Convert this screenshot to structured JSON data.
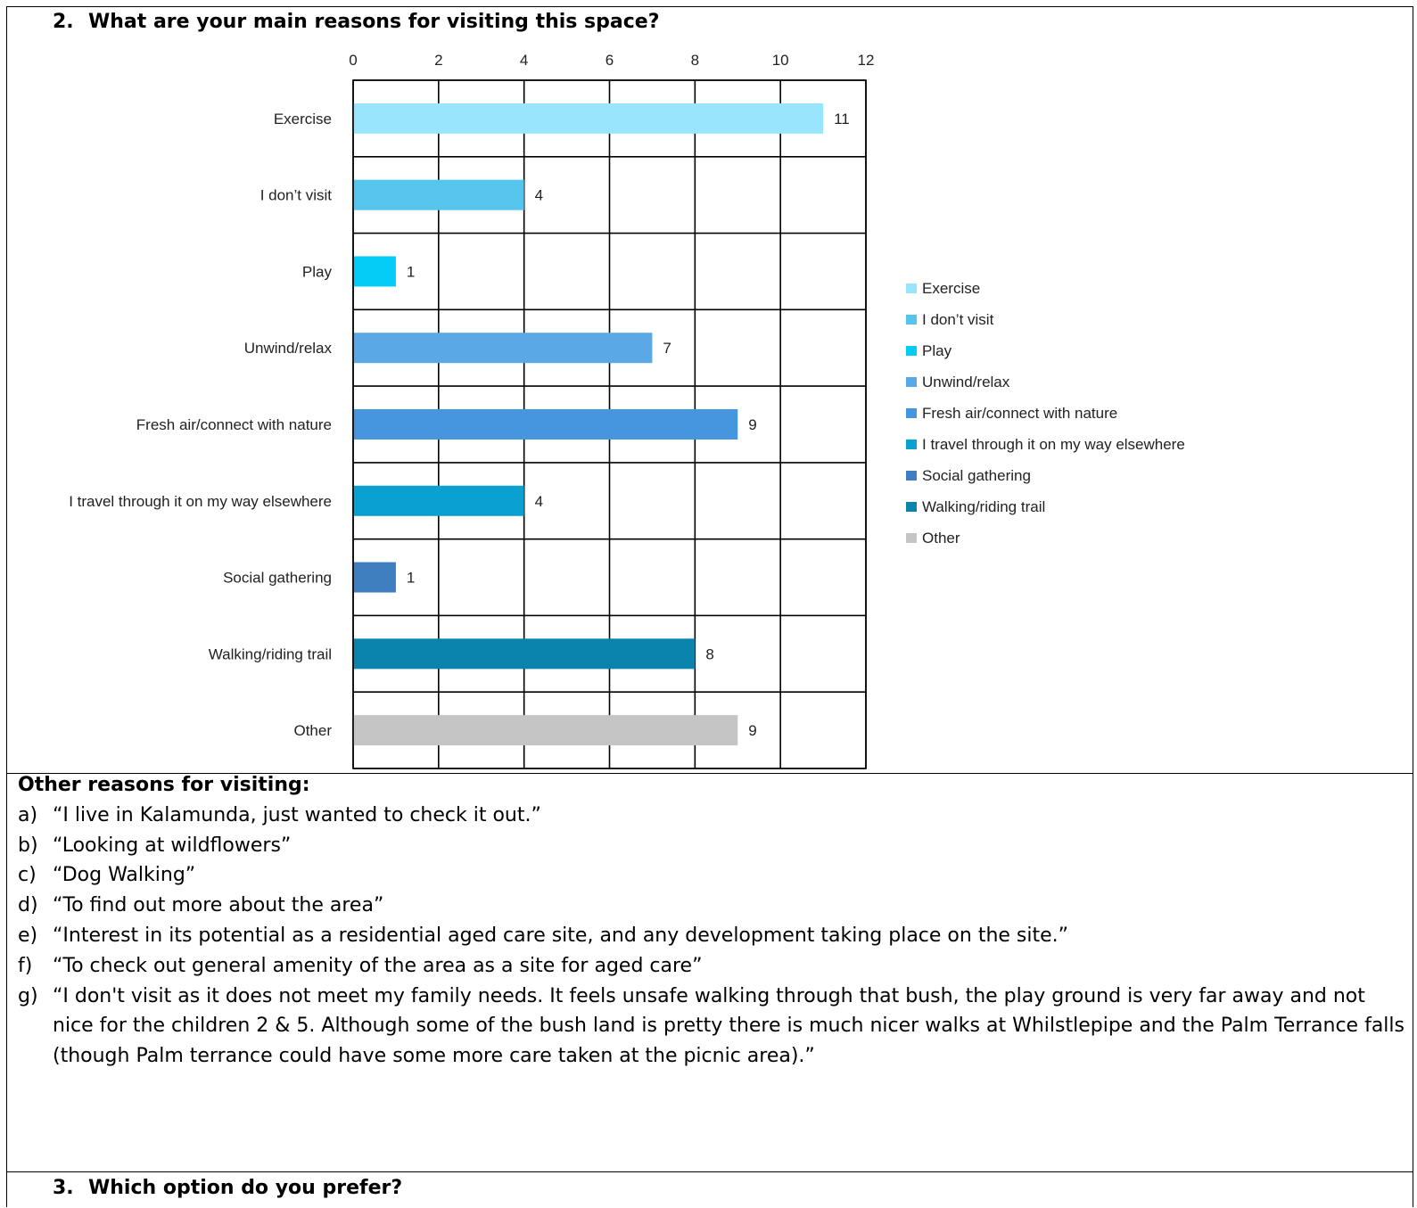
{
  "question2": {
    "number": "2.",
    "text": "What are your main reasons for visiting this space?"
  },
  "chart_data": {
    "type": "bar",
    "orientation": "horizontal",
    "categories": [
      "Exercise",
      "I don’t visit",
      "Play",
      "Unwind/relax",
      "Fresh air/connect with nature",
      "I travel through it on my way elsewhere",
      "Social gathering",
      "Walking/riding trail",
      "Other"
    ],
    "values": [
      11,
      4,
      1,
      7,
      9,
      4,
      1,
      8,
      9
    ],
    "colors": [
      "#99e5fd",
      "#56c5ee",
      "#05ccf7",
      "#5aa9e6",
      "#4695df",
      "#0aa0d0",
      "#3f7fc0",
      "#0a84ad",
      "#c5c5c5"
    ],
    "xlim": [
      0,
      12
    ],
    "xticks": [
      "0",
      "2",
      "4",
      "6",
      "8",
      "10",
      "12"
    ],
    "axis_position": "top",
    "grid": true,
    "legend": "right",
    "data_labels": true
  },
  "other_reasons": {
    "title": "Other reasons for visiting:",
    "items": [
      {
        "letter": "a)",
        "text": "“I live in Kalamunda, just wanted to check it out.”"
      },
      {
        "letter": "b)",
        "text": "“Looking at wildflowers”"
      },
      {
        "letter": "c)",
        "text": "“Dog Walking”"
      },
      {
        "letter": "d)",
        "text": "“To find out more about the area”"
      },
      {
        "letter": "e)",
        "text": "“Interest in its potential as a residential aged care site, and any development taking place on the site.”"
      },
      {
        "letter": "f)",
        "text": "“To check out general amenity of the area as a site for aged care”"
      },
      {
        "letter": "g)",
        "text": "“I don't visit as it does not meet my family needs. It feels unsafe walking through that bush, the play ground is very far away and not nice for the children 2 & 5. Although some of the bush land is pretty there is much nicer walks at Whilstlepipe and the Palm Terrance falls (though Palm terrance could have some more care taken at the picnic area).”"
      }
    ]
  },
  "question3": {
    "number": "3.",
    "text": "Which option do you prefer?"
  }
}
